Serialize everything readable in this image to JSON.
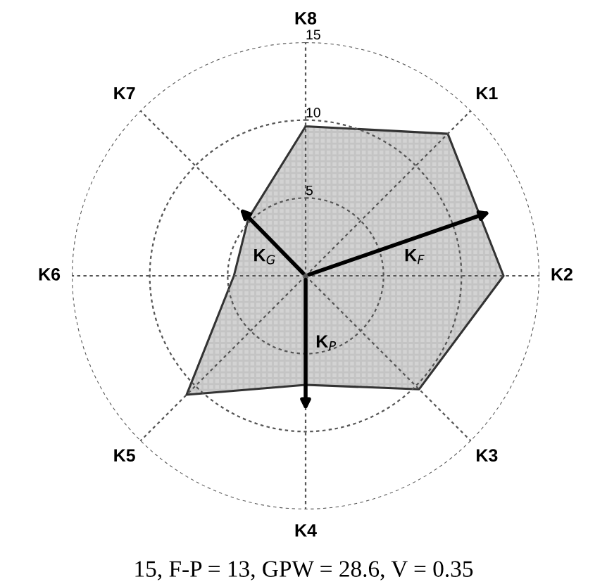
{
  "chart_data": {
    "type": "radar",
    "categories": [
      "K8",
      "K1",
      "K2",
      "K3",
      "K4",
      "K5",
      "K6",
      "K7"
    ],
    "series": [
      {
        "color": "#d3d3d3",
        "values": [
          9.6,
          12.9,
          12.7,
          10.3,
          7.0,
          10.8,
          4.6,
          5.2
        ]
      }
    ],
    "ylim": [
      0,
      15
    ],
    "yticks": [
      5,
      10,
      15
    ],
    "grid": true,
    "marker": "none",
    "line_style": "solid",
    "annotations": [
      "K$_{F}$",
      "K$_{G}$",
      "K$_{P}$",
      "15, F-P = 13, GPW = 28.6, V = 0.35"
    ]
  }
}
